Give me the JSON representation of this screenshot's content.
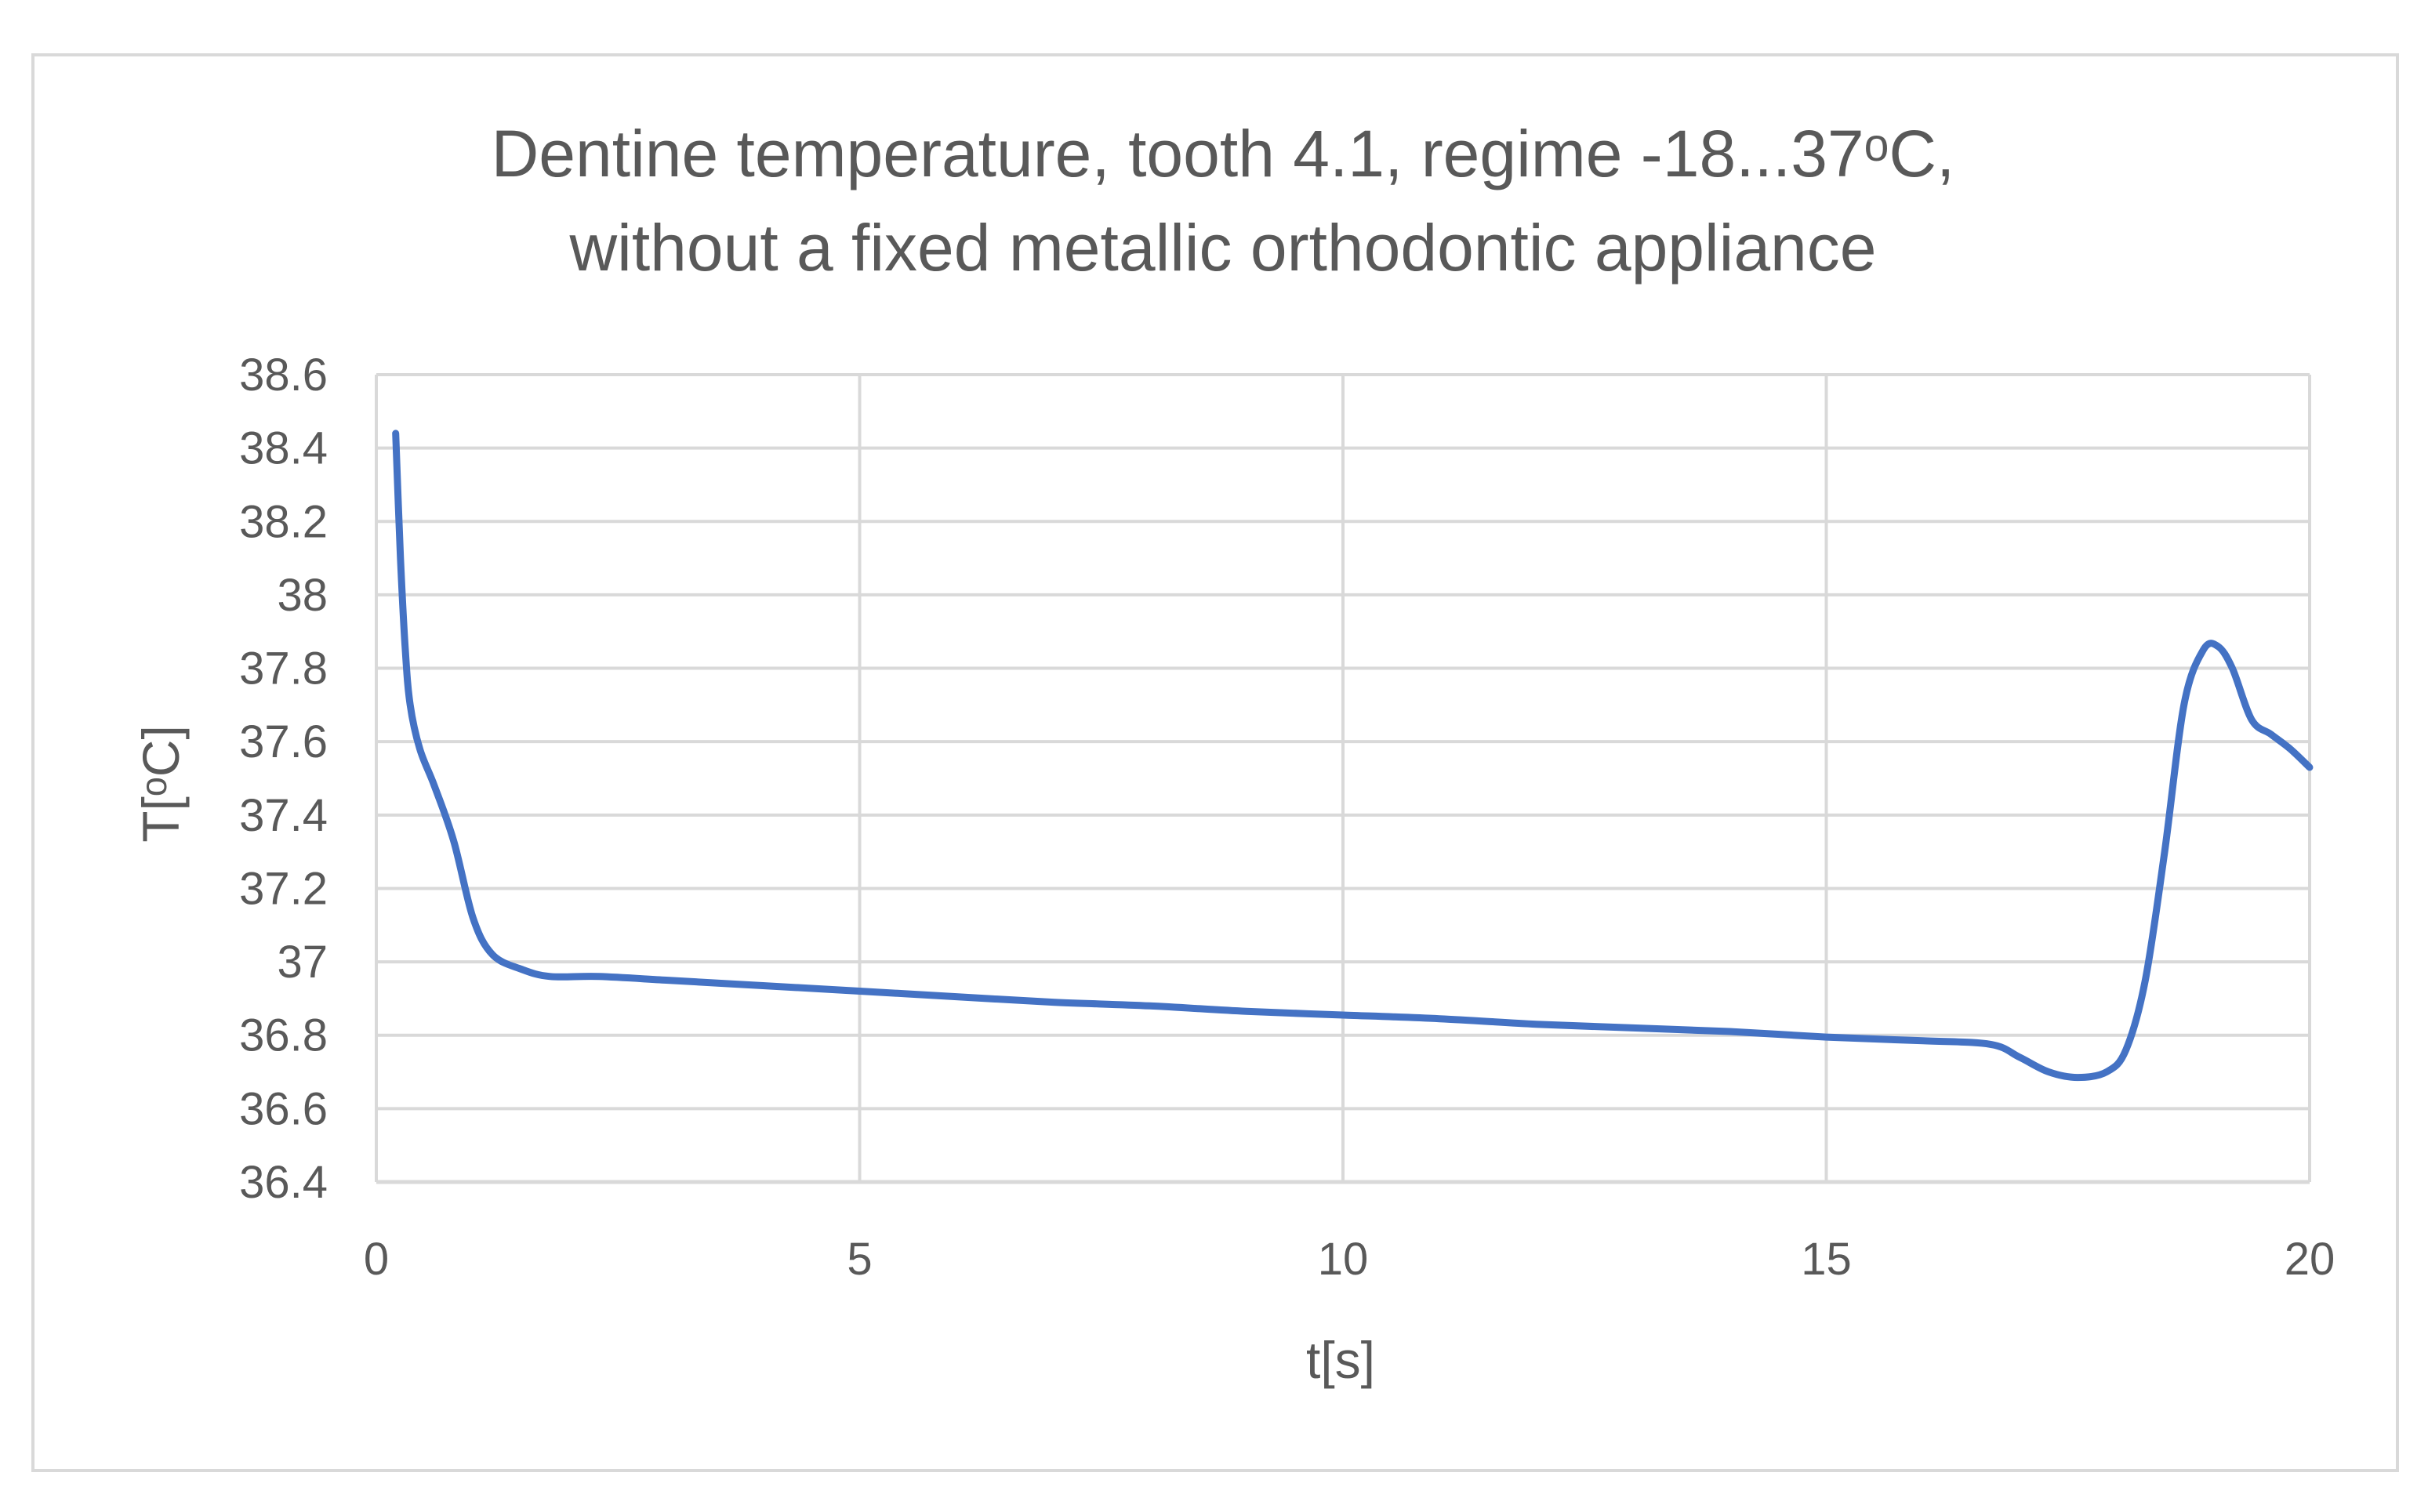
{
  "chart_data": {
    "type": "line",
    "title_lines": [
      "Dentine temperature, tooth 4.1, regime -18...37ᵒC,",
      "without a fixed metallic orthodontic appliance"
    ],
    "xlabel": "t[s]",
    "ylabel": "T[ᵒC]",
    "xlim": [
      0,
      20
    ],
    "ylim": [
      36.4,
      38.6
    ],
    "x_ticks": [
      0,
      5,
      10,
      15,
      20
    ],
    "x_tick_labels": [
      "0",
      "5",
      "10",
      "15",
      "20"
    ],
    "y_ticks": [
      36.4,
      36.6,
      36.8,
      37.0,
      37.2,
      37.4,
      37.6,
      37.8,
      38.0,
      38.2,
      38.4,
      38.6
    ],
    "y_tick_labels": [
      "36.4",
      "36.6",
      "36.8",
      "37",
      "37.2",
      "37.4",
      "37.6",
      "37.8",
      "38",
      "38.2",
      "38.4",
      "38.6"
    ],
    "grid": true,
    "legend": "none",
    "series_color": "#4472c4",
    "gridline_color": "#d9d9d9",
    "series": [
      {
        "x": [
          0.2,
          0.25,
          0.3,
          0.35,
          0.45,
          0.6,
          0.8,
          1.0,
          1.2,
          1.5,
          1.8,
          2.3,
          3,
          4,
          5,
          6,
          7,
          8,
          9,
          10,
          11,
          12,
          13,
          14,
          15,
          16,
          16.7,
          17.0,
          17.3,
          17.6,
          17.9,
          18.1,
          18.3,
          18.5,
          18.7,
          18.9,
          19.05,
          19.2,
          19.4,
          19.6,
          19.8,
          20.0
        ],
        "y": [
          38.44,
          38.1,
          37.85,
          37.7,
          37.58,
          37.48,
          37.33,
          37.12,
          37.02,
          36.98,
          36.96,
          36.96,
          36.95,
          36.935,
          36.92,
          36.905,
          36.89,
          36.88,
          36.865,
          36.855,
          36.845,
          36.83,
          36.82,
          36.81,
          36.795,
          36.785,
          36.775,
          36.74,
          36.7,
          36.685,
          36.7,
          36.76,
          36.95,
          37.3,
          37.7,
          37.85,
          37.86,
          37.8,
          37.66,
          37.62,
          37.58,
          37.53
        ]
      }
    ]
  }
}
